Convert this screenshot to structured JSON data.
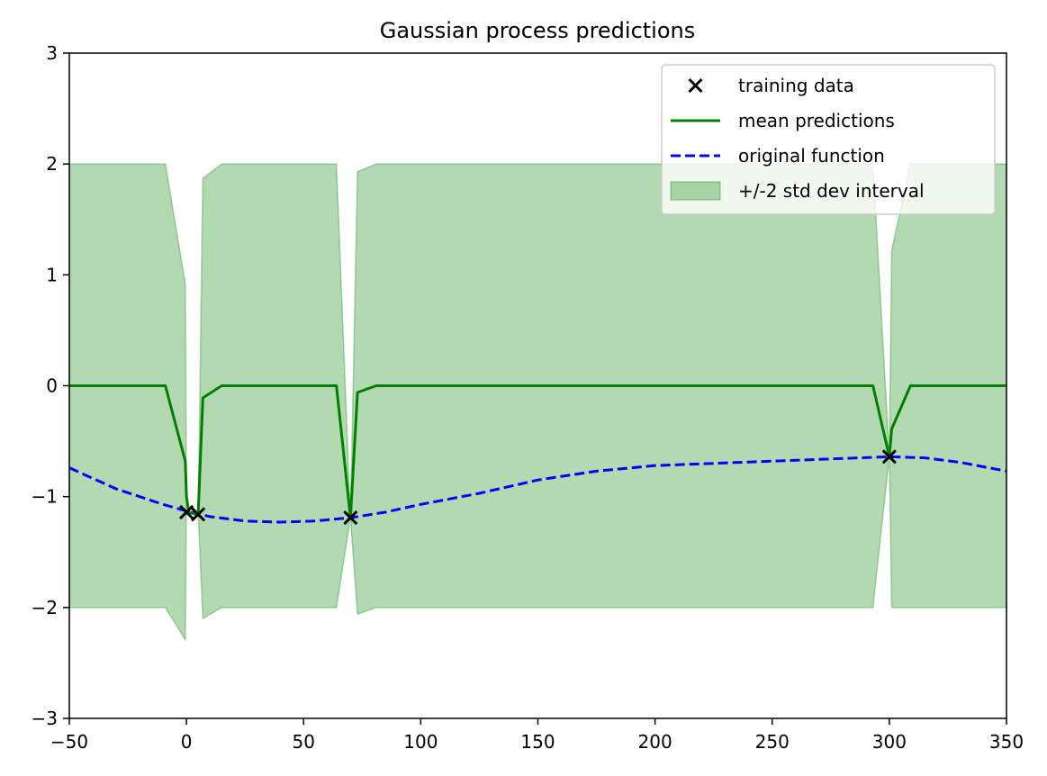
{
  "chart_data": {
    "type": "line",
    "title": "Gaussian process predictions",
    "xlabel": "",
    "ylabel": "",
    "xlim": [
      -50,
      350
    ],
    "ylim": [
      -3,
      3
    ],
    "xticks": [
      -50,
      0,
      50,
      100,
      150,
      200,
      250,
      300,
      350
    ],
    "xtick_labels": [
      "−50",
      "0",
      "50",
      "100",
      "150",
      "200",
      "250",
      "300",
      "350"
    ],
    "yticks": [
      -3,
      -2,
      -1,
      0,
      1,
      2,
      3
    ],
    "ytick_labels": [
      "−3",
      "−2",
      "−1",
      "0",
      "1",
      "2",
      "3"
    ],
    "grid": false,
    "legend_position": "top-right",
    "legend": [
      {
        "label": "training data",
        "kind": "marker",
        "color": "#000000"
      },
      {
        "label": "mean predictions",
        "kind": "line",
        "color": "#008000"
      },
      {
        "label": "original function",
        "kind": "dashed",
        "color": "#0000ff"
      },
      {
        "label": "+/-2 std dev interval",
        "kind": "patch",
        "color": "#008000"
      }
    ],
    "training_data": {
      "name": "training data",
      "color": "#000000",
      "x": [
        0,
        5,
        70,
        300
      ],
      "y": [
        -1.14,
        -1.16,
        -1.19,
        -0.64
      ]
    },
    "mean_predictions": {
      "name": "mean predictions",
      "color": "#008000",
      "x": [
        -50,
        -9,
        -0.5,
        0,
        1,
        4,
        5,
        7,
        15,
        64,
        70,
        73,
        81,
        293,
        300,
        301,
        309,
        350
      ],
      "y": [
        0,
        0,
        -0.68,
        -1.0,
        -1.14,
        -1.16,
        -1.15,
        -0.11,
        0,
        0,
        -1.19,
        -0.06,
        0,
        0,
        -0.64,
        -0.39,
        0,
        0
      ]
    },
    "original_function": {
      "name": "original function",
      "color": "#0000ff",
      "x": [
        -50,
        -30,
        -10,
        0,
        10,
        25,
        40,
        55,
        70,
        85,
        100,
        125,
        150,
        175,
        200,
        225,
        250,
        275,
        300,
        315,
        330,
        350
      ],
      "y": [
        -0.74,
        -0.93,
        -1.07,
        -1.13,
        -1.18,
        -1.22,
        -1.23,
        -1.22,
        -1.19,
        -1.14,
        -1.07,
        -0.97,
        -0.85,
        -0.77,
        -0.72,
        -0.7,
        -0.68,
        -0.66,
        -0.64,
        -0.65,
        -0.69,
        -0.77
      ]
    },
    "std_interval": {
      "name": "+/-2 std dev interval",
      "color": "#008000",
      "opacity": 0.3,
      "x": [
        -50,
        -9,
        -0.5,
        0,
        1,
        4,
        5,
        7,
        15,
        64,
        70,
        73,
        81,
        293,
        300,
        301,
        309,
        350
      ],
      "upper": [
        2,
        2,
        0.92,
        -1.0,
        -1.14,
        -1.16,
        -1.15,
        1.87,
        2,
        2,
        -1.19,
        1.93,
        2,
        2,
        -0.64,
        1.22,
        2,
        2
      ],
      "lower": [
        -2,
        -2,
        -2.29,
        -1.0,
        -1.14,
        -1.16,
        -1.15,
        -2.1,
        -2,
        -2,
        -1.19,
        -2.06,
        -2,
        -2,
        -0.64,
        -2.0,
        -2,
        -2
      ]
    }
  }
}
